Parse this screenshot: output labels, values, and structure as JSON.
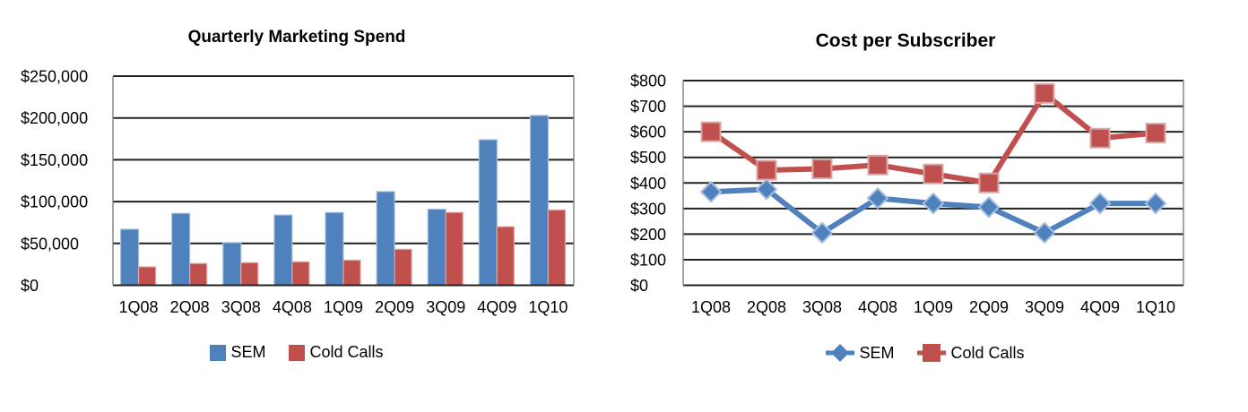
{
  "colors": {
    "sem": "#4F81BD",
    "sem_edge": "#A7C0DD",
    "cold_calls": "#C0504D",
    "cold_calls_edge": "#DBA5A3",
    "gridline": "#222222",
    "plot_border": "#7F7F7F",
    "text": "#000000",
    "background": "#FFFFFF"
  },
  "chart_data": [
    {
      "type": "bar",
      "title": "Quarterly Marketing Spend",
      "categories": [
        "1Q08",
        "2Q08",
        "3Q08",
        "4Q08",
        "1Q09",
        "2Q09",
        "3Q09",
        "4Q09",
        "1Q10"
      ],
      "series": [
        {
          "name": "SEM",
          "color": "#4F81BD",
          "values": [
            67000,
            86000,
            51000,
            84000,
            87000,
            112000,
            91000,
            174000,
            203000
          ]
        },
        {
          "name": "Cold Calls",
          "color": "#C0504D",
          "values": [
            22000,
            26000,
            27000,
            28000,
            30000,
            43000,
            87000,
            70000,
            90000
          ]
        }
      ],
      "xlabel": "",
      "ylabel": "",
      "ylim": [
        0,
        250000
      ],
      "ytick_values": [
        0,
        50000,
        100000,
        150000,
        200000,
        250000
      ],
      "ytick_labels": [
        "$0",
        "$50,000",
        "$100,000",
        "$150,000",
        "$200,000",
        "$250,000"
      ],
      "grid": "horizontal",
      "legend_position": "bottom"
    },
    {
      "type": "line",
      "title": "Cost per Subscriber",
      "categories": [
        "1Q08",
        "2Q08",
        "3Q08",
        "4Q08",
        "1Q09",
        "2Q09",
        "3Q09",
        "4Q09",
        "1Q10"
      ],
      "series": [
        {
          "name": "SEM",
          "color": "#4F81BD",
          "marker": "diamond",
          "values": [
            365,
            375,
            205,
            340,
            320,
            305,
            205,
            320,
            320
          ]
        },
        {
          "name": "Cold Calls",
          "color": "#C0504D",
          "marker": "square",
          "values": [
            600,
            450,
            455,
            470,
            435,
            400,
            750,
            575,
            595
          ]
        }
      ],
      "xlabel": "",
      "ylabel": "",
      "ylim": [
        0,
        800
      ],
      "ytick_values": [
        0,
        100,
        200,
        300,
        400,
        500,
        600,
        700,
        800
      ],
      "ytick_labels": [
        "$0",
        "$100",
        "$200",
        "$300",
        "$400",
        "$500",
        "$600",
        "$700",
        "$800"
      ],
      "grid": "horizontal",
      "legend_position": "bottom"
    }
  ]
}
